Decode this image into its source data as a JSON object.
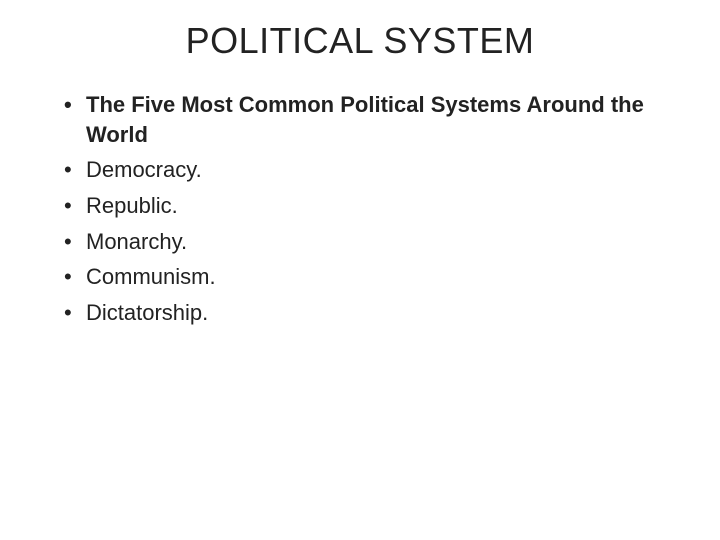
{
  "slide": {
    "title": "POLITICAL SYSTEM",
    "items": [
      {
        "text": "The Five Most Common Political Systems Around the World",
        "bold": true
      },
      {
        "text": "Democracy.",
        "bold": false
      },
      {
        "text": "Republic.",
        "bold": false
      },
      {
        "text": "Monarchy.",
        "bold": false
      },
      {
        "text": "Communism.",
        "bold": false
      },
      {
        "text": "Dictatorship.",
        "bold": false
      }
    ],
    "styling": {
      "background_color": "#ffffff",
      "text_color": "#222222",
      "title_fontsize": 36,
      "body_fontsize": 22,
      "font_family": "Arial"
    }
  }
}
